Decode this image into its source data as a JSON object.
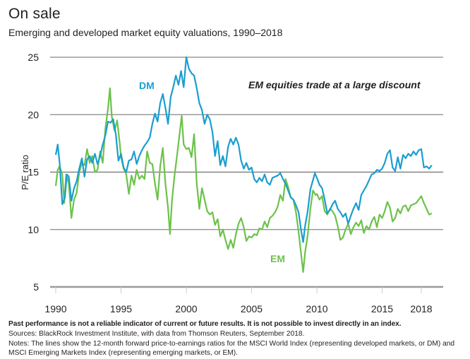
{
  "chart_data": {
    "type": "line",
    "title": "On sale",
    "subtitle": "Emerging and developed market equity valuations, 1990–2018",
    "xlabel": "",
    "ylabel": "P/E ratio",
    "ylim": [
      5,
      25
    ],
    "xlim": [
      1990,
      2018.8
    ],
    "yticks": [
      25,
      20,
      15,
      10,
      5
    ],
    "xticks": [
      1990,
      1995,
      2000,
      2005,
      2010,
      2015,
      2018
    ],
    "grid": true,
    "annotation": "EM equities trade at a large discount",
    "series": [
      {
        "name": "DM",
        "color": "#1a9ed0",
        "points": [
          [
            1990.0,
            16.5
          ],
          [
            1990.15,
            17.4
          ],
          [
            1990.3,
            15.8
          ],
          [
            1990.5,
            12.2
          ],
          [
            1990.7,
            12.8
          ],
          [
            1990.85,
            14.8
          ],
          [
            1991.0,
            14.6
          ],
          [
            1991.2,
            12.5
          ],
          [
            1991.4,
            13.6
          ],
          [
            1991.6,
            14.2
          ],
          [
            1991.8,
            15.3
          ],
          [
            1992.0,
            16.2
          ],
          [
            1992.2,
            14.6
          ],
          [
            1992.4,
            16.1
          ],
          [
            1992.6,
            16.4
          ],
          [
            1992.8,
            15.8
          ],
          [
            1993.0,
            16.6
          ],
          [
            1993.2,
            15.7
          ],
          [
            1993.4,
            16.4
          ],
          [
            1993.6,
            17.4
          ],
          [
            1993.8,
            18.2
          ],
          [
            1994.0,
            19.4
          ],
          [
            1994.2,
            19.3
          ],
          [
            1994.4,
            19.6
          ],
          [
            1994.6,
            18.3
          ],
          [
            1994.8,
            16.0
          ],
          [
            1995.0,
            16.6
          ],
          [
            1995.2,
            15.4
          ],
          [
            1995.4,
            15.0
          ],
          [
            1995.6,
            16.0
          ],
          [
            1995.8,
            16.1
          ],
          [
            1996.0,
            16.8
          ],
          [
            1996.2,
            15.7
          ],
          [
            1996.4,
            16.4
          ],
          [
            1996.6,
            16.9
          ],
          [
            1996.8,
            17.3
          ],
          [
            1997.0,
            17.6
          ],
          [
            1997.2,
            18.0
          ],
          [
            1997.4,
            19.2
          ],
          [
            1997.6,
            20.1
          ],
          [
            1997.8,
            19.4
          ],
          [
            1998.0,
            21.0
          ],
          [
            1998.2,
            21.8
          ],
          [
            1998.4,
            20.6
          ],
          [
            1998.6,
            19.2
          ],
          [
            1998.8,
            21.5
          ],
          [
            1999.0,
            22.4
          ],
          [
            1999.2,
            23.4
          ],
          [
            1999.4,
            22.6
          ],
          [
            1999.6,
            23.8
          ],
          [
            1999.8,
            22.4
          ],
          [
            2000.0,
            25.0
          ],
          [
            2000.2,
            24.0
          ],
          [
            2000.4,
            23.6
          ],
          [
            2000.6,
            23.4
          ],
          [
            2000.8,
            22.3
          ],
          [
            2001.0,
            21.0
          ],
          [
            2001.2,
            20.4
          ],
          [
            2001.4,
            19.2
          ],
          [
            2001.6,
            20.0
          ],
          [
            2001.8,
            19.6
          ],
          [
            2002.0,
            18.5
          ],
          [
            2002.2,
            16.4
          ],
          [
            2002.4,
            17.7
          ],
          [
            2002.6,
            15.6
          ],
          [
            2002.8,
            16.4
          ],
          [
            2003.0,
            15.5
          ],
          [
            2003.2,
            17.2
          ],
          [
            2003.4,
            17.9
          ],
          [
            2003.6,
            17.4
          ],
          [
            2003.8,
            18.0
          ],
          [
            2004.0,
            17.4
          ],
          [
            2004.2,
            16.0
          ],
          [
            2004.4,
            15.3
          ],
          [
            2004.6,
            15.8
          ],
          [
            2004.8,
            15.2
          ],
          [
            2005.0,
            15.4
          ],
          [
            2005.2,
            14.4
          ],
          [
            2005.4,
            14.1
          ],
          [
            2005.6,
            14.5
          ],
          [
            2005.8,
            14.2
          ],
          [
            2006.0,
            14.8
          ],
          [
            2006.2,
            14.1
          ],
          [
            2006.4,
            13.9
          ],
          [
            2006.6,
            14.5
          ],
          [
            2006.8,
            14.6
          ],
          [
            2007.0,
            14.7
          ],
          [
            2007.2,
            14.9
          ],
          [
            2007.4,
            14.4
          ],
          [
            2007.6,
            14.0
          ],
          [
            2007.8,
            13.4
          ],
          [
            2008.0,
            12.8
          ],
          [
            2008.2,
            12.6
          ],
          [
            2008.4,
            12.1
          ],
          [
            2008.6,
            11.5
          ],
          [
            2008.8,
            9.9
          ],
          [
            2008.95,
            8.9
          ],
          [
            2009.1,
            10.3
          ],
          [
            2009.3,
            11.6
          ],
          [
            2009.5,
            13.5
          ],
          [
            2009.7,
            14.3
          ],
          [
            2009.85,
            14.9
          ],
          [
            2010.0,
            14.5
          ],
          [
            2010.2,
            13.9
          ],
          [
            2010.4,
            13.6
          ],
          [
            2010.6,
            12.6
          ],
          [
            2010.8,
            11.4
          ],
          [
            2011.0,
            11.7
          ],
          [
            2011.2,
            12.2
          ],
          [
            2011.4,
            12.5
          ],
          [
            2011.6,
            11.8
          ],
          [
            2011.8,
            11.5
          ],
          [
            2012.0,
            11.1
          ],
          [
            2012.2,
            11.4
          ],
          [
            2012.4,
            10.5
          ],
          [
            2012.6,
            11.2
          ],
          [
            2012.8,
            11.8
          ],
          [
            2013.0,
            12.3
          ],
          [
            2013.2,
            11.7
          ],
          [
            2013.4,
            13.0
          ],
          [
            2013.6,
            13.4
          ],
          [
            2013.8,
            13.8
          ],
          [
            2014.0,
            14.3
          ],
          [
            2014.2,
            14.8
          ],
          [
            2014.4,
            14.9
          ],
          [
            2014.6,
            15.2
          ],
          [
            2014.8,
            15.1
          ],
          [
            2015.0,
            15.3
          ],
          [
            2015.2,
            15.8
          ],
          [
            2015.4,
            16.6
          ],
          [
            2015.6,
            16.9
          ],
          [
            2015.8,
            15.4
          ],
          [
            2016.0,
            15.1
          ],
          [
            2016.2,
            16.3
          ],
          [
            2016.4,
            15.3
          ],
          [
            2016.6,
            16.5
          ],
          [
            2016.8,
            16.2
          ],
          [
            2017.0,
            16.6
          ],
          [
            2017.2,
            16.4
          ],
          [
            2017.4,
            16.8
          ],
          [
            2017.6,
            16.5
          ],
          [
            2017.8,
            16.9
          ],
          [
            2018.0,
            17.0
          ],
          [
            2018.2,
            15.4
          ],
          [
            2018.4,
            15.5
          ],
          [
            2018.6,
            15.3
          ],
          [
            2018.8,
            15.6
          ]
        ]
      },
      {
        "name": "EM",
        "color": "#6cc24a",
        "points": [
          [
            1990.0,
            13.8
          ],
          [
            1990.15,
            15.2
          ],
          [
            1990.3,
            15.5
          ],
          [
            1990.5,
            14.8
          ],
          [
            1990.65,
            12.3
          ],
          [
            1990.8,
            14.8
          ],
          [
            1991.0,
            14.0
          ],
          [
            1991.2,
            11.0
          ],
          [
            1991.4,
            12.6
          ],
          [
            1991.6,
            13.2
          ],
          [
            1991.8,
            15.0
          ],
          [
            1992.0,
            15.8
          ],
          [
            1992.2,
            15.6
          ],
          [
            1992.4,
            17.0
          ],
          [
            1992.6,
            15.8
          ],
          [
            1992.8,
            16.4
          ],
          [
            1993.0,
            15.0
          ],
          [
            1993.2,
            15.2
          ],
          [
            1993.4,
            16.8
          ],
          [
            1993.6,
            15.8
          ],
          [
            1993.8,
            18.8
          ],
          [
            1994.0,
            20.5
          ],
          [
            1994.15,
            22.3
          ],
          [
            1994.3,
            19.8
          ],
          [
            1994.5,
            18.6
          ],
          [
            1994.7,
            19.5
          ],
          [
            1994.9,
            17.5
          ],
          [
            1995.0,
            16.3
          ],
          [
            1995.2,
            15.3
          ],
          [
            1995.4,
            14.8
          ],
          [
            1995.6,
            13.1
          ],
          [
            1995.8,
            14.7
          ],
          [
            1996.0,
            13.9
          ],
          [
            1996.2,
            15.2
          ],
          [
            1996.4,
            14.4
          ],
          [
            1996.6,
            14.7
          ],
          [
            1996.8,
            14.4
          ],
          [
            1997.0,
            16.8
          ],
          [
            1997.2,
            15.8
          ],
          [
            1997.4,
            15.7
          ],
          [
            1997.6,
            14.0
          ],
          [
            1997.8,
            12.6
          ],
          [
            1998.0,
            15.5
          ],
          [
            1998.2,
            17.1
          ],
          [
            1998.4,
            14.0
          ],
          [
            1998.6,
            11.9
          ],
          [
            1998.75,
            9.6
          ],
          [
            1998.9,
            12.5
          ],
          [
            1999.1,
            14.7
          ],
          [
            1999.3,
            16.5
          ],
          [
            1999.5,
            18.5
          ],
          [
            1999.65,
            19.9
          ],
          [
            1999.8,
            17.4
          ],
          [
            2000.0,
            17.0
          ],
          [
            2000.2,
            17.1
          ],
          [
            2000.4,
            16.3
          ],
          [
            2000.6,
            18.3
          ],
          [
            2000.8,
            14.0
          ],
          [
            2001.0,
            11.8
          ],
          [
            2001.2,
            13.6
          ],
          [
            2001.4,
            12.6
          ],
          [
            2001.6,
            11.6
          ],
          [
            2001.8,
            11.3
          ],
          [
            2002.0,
            11.5
          ],
          [
            2002.2,
            10.4
          ],
          [
            2002.4,
            10.9
          ],
          [
            2002.6,
            9.4
          ],
          [
            2002.8,
            10.0
          ],
          [
            2003.0,
            9.1
          ],
          [
            2003.2,
            8.3
          ],
          [
            2003.4,
            9.1
          ],
          [
            2003.6,
            8.4
          ],
          [
            2003.8,
            9.6
          ],
          [
            2004.0,
            10.5
          ],
          [
            2004.2,
            11.0
          ],
          [
            2004.4,
            10.2
          ],
          [
            2004.6,
            9.0
          ],
          [
            2004.8,
            9.4
          ],
          [
            2005.0,
            9.3
          ],
          [
            2005.2,
            9.6
          ],
          [
            2005.4,
            9.5
          ],
          [
            2005.6,
            10.1
          ],
          [
            2005.8,
            10.0
          ],
          [
            2006.0,
            10.7
          ],
          [
            2006.2,
            10.2
          ],
          [
            2006.4,
            11.0
          ],
          [
            2006.6,
            11.2
          ],
          [
            2006.8,
            11.5
          ],
          [
            2007.0,
            12.0
          ],
          [
            2007.2,
            13.0
          ],
          [
            2007.4,
            12.5
          ],
          [
            2007.6,
            14.4
          ],
          [
            2007.8,
            13.7
          ],
          [
            2008.0,
            12.8
          ],
          [
            2008.2,
            12.6
          ],
          [
            2008.4,
            11.5
          ],
          [
            2008.6,
            9.8
          ],
          [
            2008.8,
            7.8
          ],
          [
            2008.95,
            6.3
          ],
          [
            2009.1,
            8.0
          ],
          [
            2009.3,
            9.5
          ],
          [
            2009.5,
            11.8
          ],
          [
            2009.7,
            13.4
          ],
          [
            2009.9,
            13.0
          ],
          [
            2010.0,
            13.1
          ],
          [
            2010.2,
            12.6
          ],
          [
            2010.4,
            12.9
          ],
          [
            2010.6,
            11.6
          ],
          [
            2010.8,
            11.3
          ],
          [
            2011.0,
            11.8
          ],
          [
            2011.2,
            11.6
          ],
          [
            2011.4,
            11.2
          ],
          [
            2011.6,
            10.3
          ],
          [
            2011.8,
            9.1
          ],
          [
            2012.0,
            9.3
          ],
          [
            2012.2,
            10.0
          ],
          [
            2012.4,
            10.5
          ],
          [
            2012.6,
            9.6
          ],
          [
            2012.8,
            10.2
          ],
          [
            2013.0,
            10.6
          ],
          [
            2013.2,
            10.3
          ],
          [
            2013.4,
            10.8
          ],
          [
            2013.6,
            9.7
          ],
          [
            2013.8,
            10.3
          ],
          [
            2014.0,
            10.0
          ],
          [
            2014.2,
            10.7
          ],
          [
            2014.4,
            11.1
          ],
          [
            2014.6,
            10.2
          ],
          [
            2014.8,
            11.3
          ],
          [
            2015.0,
            11.0
          ],
          [
            2015.2,
            11.6
          ],
          [
            2015.4,
            12.4
          ],
          [
            2015.6,
            11.9
          ],
          [
            2015.8,
            10.7
          ],
          [
            2016.0,
            11.0
          ],
          [
            2016.2,
            11.8
          ],
          [
            2016.4,
            11.4
          ],
          [
            2016.6,
            12.0
          ],
          [
            2016.8,
            12.1
          ],
          [
            2017.0,
            11.6
          ],
          [
            2017.2,
            12.1
          ],
          [
            2017.4,
            12.2
          ],
          [
            2017.6,
            12.3
          ],
          [
            2017.8,
            12.6
          ],
          [
            2018.0,
            12.9
          ],
          [
            2018.2,
            12.3
          ],
          [
            2018.4,
            11.8
          ],
          [
            2018.6,
            11.3
          ],
          [
            2018.8,
            11.4
          ]
        ]
      }
    ]
  },
  "footer": {
    "disclaimer": "Past performance is not a reliable indicator of current or future results. It is not possible to invest directly in an index.",
    "sources": "Sources: BlackRock Investment Institute, with data from Thomson Reuters, September 2018.",
    "notes": "Notes: The lines show the 12-month forward price-to-earnings ratios for the MSCI World Index (representing developed markets, or DM) and MSCI Emerging Markets Index (representing emerging markets, or EM)."
  }
}
